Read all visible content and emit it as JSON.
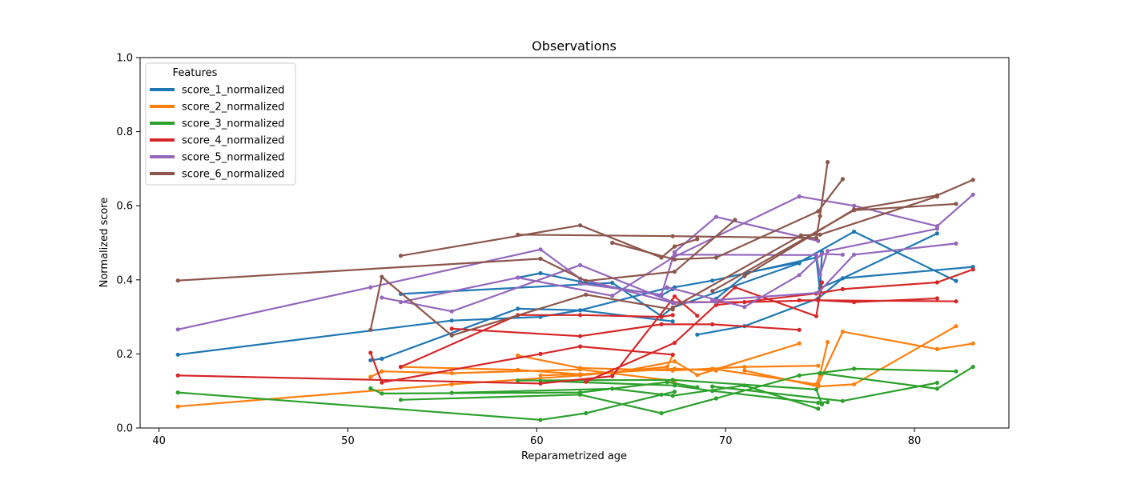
{
  "chart_data": {
    "type": "line",
    "title": "Observations",
    "xlabel": "Reparametrized age",
    "ylabel": "Normalized score",
    "xlim": [
      39.0,
      85.0
    ],
    "ylim": [
      0.0,
      1.0
    ],
    "xticks": [
      40,
      50,
      60,
      70,
      80
    ],
    "yticks": [
      0.0,
      0.2,
      0.4,
      0.6,
      0.8,
      1.0
    ],
    "grid": false,
    "legend": {
      "title": "Features",
      "placement": "top-left",
      "entries": [
        "score_1_normalized",
        "score_2_normalized",
        "score_3_normalized",
        "score_4_normalized",
        "score_5_normalized",
        "score_6_normalized"
      ]
    },
    "series": [
      {
        "name": "score_1_normalized",
        "color": "#1f77b4",
        "subjects": [
          [
            [
              41.0,
              0.198
            ],
            [
              55.5,
              0.29
            ],
            [
              60.2,
              0.3
            ],
            [
              62.3,
              0.318
            ],
            [
              66.9,
              0.378
            ]
          ],
          [
            [
              51.2,
              0.183
            ],
            [
              51.8,
              0.187
            ],
            [
              59.0,
              0.322
            ],
            [
              62.3,
              0.318
            ],
            [
              67.2,
              0.288
            ]
          ],
          [
            [
              52.8,
              0.362
            ],
            [
              64.0,
              0.392
            ],
            [
              66.6,
              0.302
            ],
            [
              67.2,
              0.325
            ],
            [
              73.9,
              0.445
            ]
          ],
          [
            [
              59.0,
              0.406
            ],
            [
              60.2,
              0.418
            ],
            [
              62.3,
              0.395
            ],
            [
              66.6,
              0.358
            ],
            [
              67.2,
              0.375
            ]
          ],
          [
            [
              67.3,
              0.38
            ],
            [
              69.3,
              0.398
            ],
            [
              74.8,
              0.46
            ],
            [
              75.0,
              0.37
            ],
            [
              75.1,
              0.475
            ]
          ],
          [
            [
              68.5,
              0.252
            ],
            [
              71.0,
              0.275
            ],
            [
              74.9,
              0.35
            ],
            [
              76.2,
              0.404
            ],
            [
              81.2,
              0.525
            ]
          ],
          [
            [
              69.5,
              0.349
            ],
            [
              71.2,
              0.42
            ],
            [
              73.9,
              0.447
            ],
            [
              76.8,
              0.53
            ],
            [
              82.2,
              0.397
            ]
          ],
          [
            [
              75.0,
              0.378
            ],
            [
              76.2,
              0.404
            ],
            [
              83.1,
              0.435
            ]
          ]
        ]
      },
      {
        "name": "score_2_normalized",
        "color": "#ff7f0e",
        "subjects": [
          [
            [
              41.0,
              0.058
            ],
            [
              55.5,
              0.118
            ],
            [
              62.3,
              0.142
            ],
            [
              66.9,
              0.165
            ],
            [
              67.2,
              0.197
            ]
          ],
          [
            [
              51.2,
              0.138
            ],
            [
              51.8,
              0.153
            ],
            [
              55.5,
              0.148
            ],
            [
              62.3,
              0.158
            ],
            [
              67.3,
              0.127
            ]
          ],
          [
            [
              52.8,
              0.165
            ],
            [
              59.0,
              0.157
            ],
            [
              62.3,
              0.145
            ],
            [
              67.3,
              0.16
            ],
            [
              69.5,
              0.155
            ]
          ],
          [
            [
              59.0,
              0.196
            ],
            [
              62.3,
              0.162
            ],
            [
              67.2,
              0.155
            ],
            [
              71.0,
              0.165
            ],
            [
              74.9,
              0.168
            ]
          ],
          [
            [
              60.2,
              0.142
            ],
            [
              64.0,
              0.148
            ],
            [
              67.3,
              0.18
            ],
            [
              68.5,
              0.143
            ],
            [
              73.9,
              0.228
            ]
          ],
          [
            [
              69.3,
              0.16
            ],
            [
              74.8,
              0.118
            ],
            [
              75.0,
              0.144
            ],
            [
              75.4,
              0.232
            ]
          ],
          [
            [
              71.0,
              0.155
            ],
            [
              74.9,
              0.112
            ],
            [
              76.8,
              0.118
            ],
            [
              82.2,
              0.275
            ]
          ],
          [
            [
              74.9,
              0.118
            ],
            [
              76.2,
              0.26
            ],
            [
              81.2,
              0.213
            ],
            [
              83.1,
              0.228
            ]
          ]
        ]
      },
      {
        "name": "score_3_normalized",
        "color": "#2ca02c",
        "subjects": [
          [
            [
              41.0,
              0.096
            ],
            [
              60.2,
              0.022
            ],
            [
              62.6,
              0.04
            ],
            [
              66.6,
              0.09
            ],
            [
              67.3,
              0.098
            ]
          ],
          [
            [
              51.2,
              0.107
            ],
            [
              51.8,
              0.093
            ],
            [
              62.3,
              0.096
            ],
            [
              66.9,
              0.124
            ],
            [
              68.5,
              0.11
            ]
          ],
          [
            [
              52.8,
              0.076
            ],
            [
              62.3,
              0.09
            ],
            [
              66.6,
              0.04
            ],
            [
              69.5,
              0.08
            ],
            [
              73.9,
              0.142
            ]
          ],
          [
            [
              55.5,
              0.095
            ],
            [
              64.0,
              0.106
            ],
            [
              67.2,
              0.087
            ],
            [
              71.0,
              0.115
            ],
            [
              74.9,
              0.052
            ]
          ],
          [
            [
              59.0,
              0.128
            ],
            [
              67.2,
              0.13
            ],
            [
              74.8,
              0.104
            ],
            [
              75.1,
              0.064
            ]
          ],
          [
            [
              60.2,
              0.127
            ],
            [
              67.3,
              0.115
            ],
            [
              69.3,
              0.1
            ],
            [
              74.9,
              0.068
            ],
            [
              75.4,
              0.07
            ]
          ],
          [
            [
              69.3,
              0.112
            ],
            [
              76.2,
              0.073
            ],
            [
              81.2,
              0.122
            ]
          ],
          [
            [
              73.9,
              0.142
            ],
            [
              76.8,
              0.16
            ],
            [
              82.2,
              0.153
            ]
          ],
          [
            [
              75.0,
              0.148
            ],
            [
              81.2,
              0.106
            ],
            [
              83.1,
              0.165
            ]
          ]
        ]
      },
      {
        "name": "score_4_normalized",
        "color": "#d62728",
        "subjects": [
          [
            [
              41.0,
              0.142
            ],
            [
              60.2,
              0.12
            ],
            [
              64.0,
              0.14
            ],
            [
              67.3,
              0.355
            ],
            [
              68.5,
              0.303
            ]
          ],
          [
            [
              51.2,
              0.203
            ],
            [
              51.8,
              0.123
            ],
            [
              60.2,
              0.2
            ],
            [
              62.3,
              0.22
            ],
            [
              67.2,
              0.198
            ]
          ],
          [
            [
              52.8,
              0.165
            ],
            [
              59.0,
              0.305
            ],
            [
              62.3,
              0.305
            ],
            [
              66.6,
              0.3
            ],
            [
              67.2,
              0.305
            ]
          ],
          [
            [
              55.5,
              0.268
            ],
            [
              62.3,
              0.248
            ],
            [
              66.6,
              0.28
            ],
            [
              69.3,
              0.28
            ],
            [
              73.9,
              0.265
            ]
          ],
          [
            [
              62.6,
              0.125
            ],
            [
              67.3,
              0.23
            ],
            [
              70.5,
              0.38
            ],
            [
              74.8,
              0.302
            ],
            [
              75.1,
              0.393
            ]
          ],
          [
            [
              67.2,
              0.34
            ],
            [
              71.0,
              0.34
            ],
            [
              74.9,
              0.345
            ],
            [
              76.8,
              0.34
            ],
            [
              81.2,
              0.35
            ]
          ],
          [
            [
              69.5,
              0.332
            ],
            [
              74.8,
              0.363
            ],
            [
              76.2,
              0.375
            ],
            [
              81.2,
              0.393
            ],
            [
              83.1,
              0.428
            ]
          ],
          [
            [
              73.9,
              0.345
            ],
            [
              74.9,
              0.345
            ],
            [
              82.2,
              0.342
            ]
          ]
        ]
      },
      {
        "name": "score_5_normalized",
        "color": "#9467bd",
        "subjects": [
          [
            [
              41.0,
              0.266
            ],
            [
              51.2,
              0.38
            ],
            [
              60.2,
              0.482
            ],
            [
              62.3,
              0.403
            ],
            [
              67.2,
              0.338
            ]
          ],
          [
            [
              51.8,
              0.352
            ],
            [
              55.5,
              0.315
            ],
            [
              62.3,
              0.44
            ],
            [
              67.3,
              0.338
            ],
            [
              69.5,
              0.34
            ]
          ],
          [
            [
              52.8,
              0.34
            ],
            [
              59.0,
              0.406
            ],
            [
              64.0,
              0.357
            ],
            [
              67.2,
              0.46
            ],
            [
              73.9,
              0.625
            ]
          ],
          [
            [
              62.3,
              0.39
            ],
            [
              66.6,
              0.36
            ],
            [
              67.3,
              0.475
            ],
            [
              69.5,
              0.57
            ],
            [
              74.9,
              0.505
            ]
          ],
          [
            [
              66.9,
              0.38
            ],
            [
              71.0,
              0.327
            ],
            [
              73.9,
              0.413
            ],
            [
              75.1,
              0.47
            ],
            [
              76.2,
              0.468
            ]
          ],
          [
            [
              67.3,
              0.468
            ],
            [
              74.8,
              0.467
            ],
            [
              75.0,
              0.413
            ],
            [
              75.4,
              0.478
            ],
            [
              81.2,
              0.538
            ]
          ],
          [
            [
              69.3,
              0.345
            ],
            [
              74.9,
              0.365
            ],
            [
              76.8,
              0.468
            ],
            [
              82.2,
              0.498
            ]
          ],
          [
            [
              73.9,
              0.625
            ],
            [
              76.8,
              0.6
            ],
            [
              81.2,
              0.545
            ],
            [
              83.1,
              0.63
            ]
          ]
        ]
      },
      {
        "name": "score_6_normalized",
        "color": "#8c564b",
        "subjects": [
          [
            [
              41.0,
              0.398
            ],
            [
              60.2,
              0.457
            ],
            [
              62.6,
              0.397
            ],
            [
              67.3,
              0.422
            ],
            [
              70.5,
              0.562
            ]
          ],
          [
            [
              51.2,
              0.265
            ],
            [
              51.8,
              0.408
            ],
            [
              55.5,
              0.25
            ],
            [
              62.6,
              0.36
            ],
            [
              67.2,
              0.32
            ]
          ],
          [
            [
              52.8,
              0.465
            ],
            [
              62.3,
              0.547
            ],
            [
              66.6,
              0.46
            ],
            [
              67.3,
              0.49
            ],
            [
              68.5,
              0.51
            ]
          ],
          [
            [
              59.0,
              0.522
            ],
            [
              67.2,
              0.518
            ],
            [
              74.8,
              0.513
            ],
            [
              75.0,
              0.572
            ],
            [
              75.4,
              0.718
            ]
          ],
          [
            [
              64.0,
              0.5
            ],
            [
              67.3,
              0.455
            ],
            [
              69.5,
              0.46
            ],
            [
              74.9,
              0.585
            ],
            [
              76.2,
              0.672
            ]
          ],
          [
            [
              67.2,
              0.325
            ],
            [
              74.0,
              0.52
            ],
            [
              75.0,
              0.522
            ],
            [
              81.2,
              0.625
            ]
          ],
          [
            [
              69.3,
              0.37
            ],
            [
              76.8,
              0.588
            ],
            [
              82.2,
              0.605
            ]
          ],
          [
            [
              71.0,
              0.41
            ],
            [
              76.8,
              0.59
            ],
            [
              81.2,
              0.628
            ],
            [
              83.1,
              0.67
            ]
          ]
        ]
      }
    ]
  }
}
